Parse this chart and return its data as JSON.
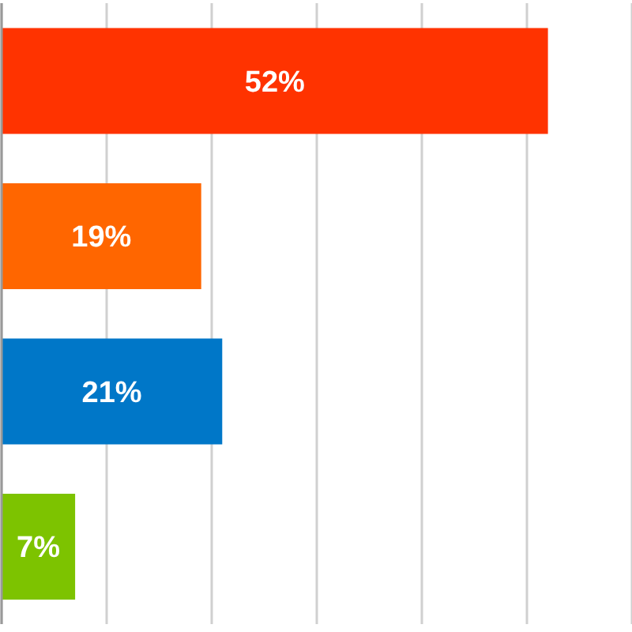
{
  "chart_data": {
    "type": "bar",
    "orientation": "horizontal",
    "categories": [
      null,
      null,
      null,
      null
    ],
    "values": [
      52,
      19,
      21,
      7
    ],
    "colors": [
      "#ff3300",
      "#ff6600",
      "#0077c8",
      "#7dc300"
    ],
    "value_labels": [
      "52%",
      "19%",
      "21%",
      "7%"
    ],
    "xlim": [
      0,
      60
    ],
    "xticks": [
      {
        "value": 0,
        "label": null
      },
      {
        "value": 10,
        "label": null
      },
      {
        "value": 20,
        "label": null
      },
      {
        "value": 30,
        "label": null
      },
      {
        "value": 40,
        "label": null
      },
      {
        "value": 50,
        "label": null
      },
      {
        "value": 60,
        "label": null
      }
    ],
    "grid": "x",
    "tick_labels": false
  }
}
